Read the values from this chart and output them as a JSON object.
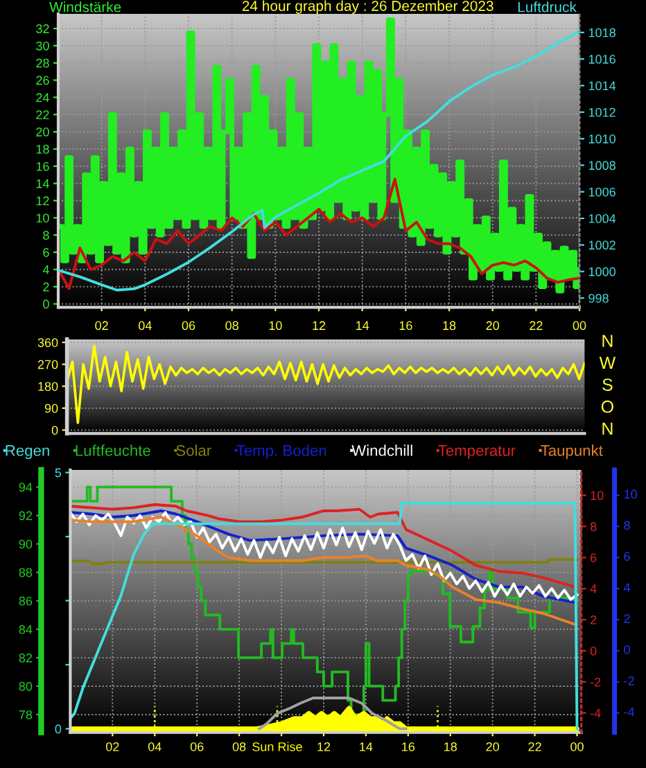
{
  "chart_data": [
    {
      "type": "line",
      "title": "24 hour graph day : 26 Dezember 2023",
      "ylabel": "Windstärke",
      "y2label": "Luftdruck",
      "xlim": [
        "2023-12-26T00:00",
        "2023-12-27T00:00"
      ],
      "xticks": [
        {
          "value": "2023-12-26T02:00",
          "label": "02"
        },
        {
          "value": "2023-12-26T04:00",
          "label": "04"
        },
        {
          "value": "2023-12-26T06:00",
          "label": "06"
        },
        {
          "value": "2023-12-26T08:00",
          "label": "08"
        },
        {
          "value": "2023-12-26T10:00",
          "label": "10"
        },
        {
          "value": "2023-12-26T12:00",
          "label": "12"
        },
        {
          "value": "2023-12-26T14:00",
          "label": "14"
        },
        {
          "value": "2023-12-26T16:00",
          "label": "16"
        },
        {
          "value": "2023-12-26T18:00",
          "label": "18"
        },
        {
          "value": "2023-12-26T20:00",
          "label": "20"
        },
        {
          "value": "2023-12-26T22:00",
          "label": "22"
        },
        {
          "value": "2023-12-27T00:00",
          "label": "00"
        }
      ],
      "ylim": [
        -0.4,
        33.7
      ],
      "yticks": [
        0,
        2,
        4,
        6,
        8,
        10,
        12,
        14,
        16,
        18,
        20,
        22,
        24,
        26,
        28,
        30,
        32
      ],
      "y2lim": [
        997.3,
        1019.4
      ],
      "y2ticks": [
        998,
        1000,
        1002,
        1004,
        1006,
        1008,
        1010,
        1012,
        1014,
        1016,
        1018
      ],
      "grid": true,
      "series": [
        {
          "type": "step",
          "color": "#22ee22",
          "x": [
            "2023-12-26T00:00",
            "2023-12-26T00:12",
            "2023-12-26T00:24",
            "2023-12-26T00:36",
            "2023-12-26T00:48",
            "2023-12-26T01:00",
            "2023-12-26T01:12",
            "2023-12-26T01:24",
            "2023-12-26T01:36",
            "2023-12-26T01:48",
            "2023-12-26T02:00",
            "2023-12-26T02:12",
            "2023-12-26T02:24",
            "2023-12-26T02:36",
            "2023-12-26T02:48",
            "2023-12-26T03:00",
            "2023-12-26T03:12",
            "2023-12-26T03:24",
            "2023-12-26T03:36",
            "2023-12-26T03:48",
            "2023-12-26T04:00",
            "2023-12-26T04:12",
            "2023-12-26T04:24",
            "2023-12-26T04:36",
            "2023-12-26T04:48",
            "2023-12-26T05:00",
            "2023-12-26T05:12",
            "2023-12-26T05:24",
            "2023-12-26T05:36",
            "2023-12-26T05:48",
            "2023-12-26T06:00",
            "2023-12-26T06:12",
            "2023-12-26T06:24",
            "2023-12-26T06:36",
            "2023-12-26T06:48",
            "2023-12-26T07:00",
            "2023-12-26T07:12",
            "2023-12-26T07:24",
            "2023-12-26T07:36",
            "2023-12-26T07:48",
            "2023-12-26T08:00",
            "2023-12-26T08:12",
            "2023-12-26T08:24",
            "2023-12-26T08:36",
            "2023-12-26T08:48",
            "2023-12-26T09:00",
            "2023-12-26T09:12",
            "2023-12-26T09:24",
            "2023-12-26T09:36",
            "2023-12-26T09:48",
            "2023-12-26T10:00",
            "2023-12-26T10:12",
            "2023-12-26T10:24",
            "2023-12-26T10:36",
            "2023-12-26T10:48",
            "2023-12-26T11:00",
            "2023-12-26T11:12",
            "2023-12-26T11:24",
            "2023-12-26T11:36",
            "2023-12-26T11:48",
            "2023-12-26T12:00",
            "2023-12-26T12:12",
            "2023-12-26T12:24",
            "2023-12-26T12:36",
            "2023-12-26T12:48",
            "2023-12-26T13:00",
            "2023-12-26T13:12",
            "2023-12-26T13:24",
            "2023-12-26T13:36",
            "2023-12-26T13:48",
            "2023-12-26T14:00",
            "2023-12-26T14:12",
            "2023-12-26T14:24",
            "2023-12-26T14:36",
            "2023-12-26T14:48",
            "2023-12-26T15:00",
            "2023-12-26T15:12",
            "2023-12-26T15:24",
            "2023-12-26T15:36",
            "2023-12-26T15:48",
            "2023-12-26T16:00",
            "2023-12-26T16:12",
            "2023-12-26T16:24",
            "2023-12-26T16:36",
            "2023-12-26T16:48",
            "2023-12-26T17:00",
            "2023-12-26T17:12",
            "2023-12-26T17:24",
            "2023-12-26T17:36",
            "2023-12-26T17:48",
            "2023-12-26T18:00",
            "2023-12-26T18:12",
            "2023-12-26T18:24",
            "2023-12-26T18:36",
            "2023-12-26T18:48",
            "2023-12-26T19:00",
            "2023-12-26T19:12",
            "2023-12-26T19:24",
            "2023-12-26T19:36",
            "2023-12-26T19:48",
            "2023-12-26T20:00",
            "2023-12-26T20:12",
            "2023-12-26T20:24",
            "2023-12-26T20:36",
            "2023-12-26T20:48",
            "2023-12-26T21:00",
            "2023-12-26T21:12",
            "2023-12-26T21:24",
            "2023-12-26T21:36",
            "2023-12-26T21:48",
            "2023-12-26T22:00",
            "2023-12-26T22:12",
            "2023-12-26T22:24",
            "2023-12-26T22:36",
            "2023-12-26T22:48",
            "2023-12-26T23:00",
            "2023-12-26T23:12",
            "2023-12-26T23:24",
            "2023-12-26T23:36",
            "2023-12-26T23:48",
            "2023-12-27T00:00"
          ],
          "values": [
            9,
            5,
            17,
            6,
            9,
            5,
            15,
            6,
            17,
            5,
            14,
            7,
            22,
            6,
            15,
            5,
            18,
            8,
            14,
            6,
            20,
            9,
            18,
            8,
            22,
            9,
            18,
            10,
            20,
            9,
            31.5,
            10,
            22,
            9,
            18,
            10,
            27.5,
            9,
            20,
            26,
            10,
            18,
            9,
            22,
            5.5,
            27.5,
            10,
            24,
            9,
            20,
            10,
            18,
            9,
            26,
            10,
            22,
            9,
            18,
            10,
            30,
            11,
            28,
            10,
            30,
            12,
            26,
            10,
            28,
            11,
            24,
            10,
            28,
            12,
            27,
            10,
            22,
            33,
            12,
            26,
            9,
            20,
            8,
            18,
            7,
            20,
            9,
            16,
            8,
            15,
            6,
            14,
            8,
            16.5,
            6,
            12,
            3,
            9,
            4,
            10,
            3,
            8,
            4,
            16.5,
            3,
            11,
            4,
            9,
            3,
            12.5,
            4,
            8,
            2,
            7,
            3,
            6,
            1.5,
            6.5,
            3,
            6,
            2,
            4
          ]
        },
        {
          "color": "#cc1111",
          "x": [
            "2023-12-26T00:00",
            "2023-12-26T00:30",
            "2023-12-26T01:00",
            "2023-12-26T01:30",
            "2023-12-26T02:00",
            "2023-12-26T02:30",
            "2023-12-26T03:00",
            "2023-12-26T03:30",
            "2023-12-26T04:00",
            "2023-12-26T04:30",
            "2023-12-26T05:00",
            "2023-12-26T05:30",
            "2023-12-26T06:00",
            "2023-12-26T06:30",
            "2023-12-26T07:00",
            "2023-12-26T07:30",
            "2023-12-26T08:00",
            "2023-12-26T08:30",
            "2023-12-26T09:00",
            "2023-12-26T09:30",
            "2023-12-26T10:00",
            "2023-12-26T10:30",
            "2023-12-26T11:00",
            "2023-12-26T11:30",
            "2023-12-26T12:00",
            "2023-12-26T12:30",
            "2023-12-26T13:00",
            "2023-12-26T13:30",
            "2023-12-26T14:00",
            "2023-12-26T14:30",
            "2023-12-26T15:00",
            "2023-12-26T15:30",
            "2023-12-26T16:00",
            "2023-12-26T16:30",
            "2023-12-26T17:00",
            "2023-12-26T17:30",
            "2023-12-26T18:00",
            "2023-12-26T18:30",
            "2023-12-26T19:00",
            "2023-12-26T19:30",
            "2023-12-26T20:00",
            "2023-12-26T20:30",
            "2023-12-26T21:00",
            "2023-12-26T21:30",
            "2023-12-26T22:00",
            "2023-12-26T22:30",
            "2023-12-26T23:00",
            "2023-12-26T23:30",
            "2023-12-27T00:00"
          ],
          "values": [
            4.0,
            1.8,
            6.5,
            4.0,
            4.5,
            5.5,
            5.0,
            6.0,
            5.0,
            7.5,
            7.0,
            8.5,
            7.0,
            8.0,
            9.0,
            8.5,
            10.0,
            9.0,
            10.5,
            8.5,
            9.5,
            8.0,
            9.0,
            10.0,
            11.0,
            9.5,
            10.5,
            9.5,
            10.0,
            9.0,
            10.0,
            14.5,
            8.5,
            9.5,
            7.5,
            7.0,
            7.0,
            6.5,
            5.5,
            3.5,
            4.5,
            4.8,
            4.5,
            5.0,
            4.2,
            3.0,
            2.5,
            2.8,
            3.0
          ]
        },
        {
          "axis": "y2",
          "color": "#44dddd",
          "x": [
            "2023-12-26T00:00",
            "2023-12-26T01:00",
            "2023-12-26T02:00",
            "2023-12-26T02:42",
            "2023-12-26T03:30",
            "2023-12-26T04:00",
            "2023-12-26T05:00",
            "2023-12-26T06:00",
            "2023-12-26T07:00",
            "2023-12-26T08:00",
            "2023-12-26T09:00",
            "2023-12-26T09:24",
            "2023-12-26T09:30",
            "2023-12-26T10:00",
            "2023-12-26T11:00",
            "2023-12-26T12:00",
            "2023-12-26T13:00",
            "2023-12-26T14:00",
            "2023-12-26T15:00",
            "2023-12-26T16:00",
            "2023-12-26T17:00",
            "2023-12-26T18:00",
            "2023-12-26T19:00",
            "2023-12-26T20:00",
            "2023-12-26T21:00",
            "2023-12-26T22:00",
            "2023-12-26T23:00",
            "2023-12-27T00:00"
          ],
          "values": [
            1000.1,
            999.6,
            999.0,
            998.6,
            998.7,
            999.0,
            999.8,
            1000.7,
            1001.8,
            1003.0,
            1004.3,
            1004.6,
            1003.3,
            1004.1,
            1005.0,
            1005.9,
            1006.9,
            1007.6,
            1008.3,
            1010.2,
            1011.3,
            1012.8,
            1013.9,
            1014.8,
            1015.4,
            1016.2,
            1017.2,
            1018.1
          ]
        }
      ]
    },
    {
      "type": "line",
      "categories": [
        null,
        null,
        null,
        null,
        null,
        null,
        null,
        null,
        null,
        null,
        null,
        null,
        null,
        null,
        null,
        null,
        null,
        null,
        null,
        null,
        null,
        null,
        null,
        null,
        null,
        null,
        null,
        null,
        null,
        null,
        null,
        null,
        null,
        null,
        null,
        null,
        null,
        null,
        null,
        null,
        null,
        null,
        null,
        null,
        null,
        null,
        null,
        null,
        null,
        null,
        null,
        null,
        null,
        null,
        null,
        null,
        null,
        null,
        null,
        null,
        null,
        null,
        null,
        null,
        null,
        null,
        null,
        null,
        null,
        null,
        null,
        null,
        null,
        null,
        null,
        null,
        null,
        null,
        null,
        null,
        null,
        null,
        null,
        null,
        null,
        null,
        null,
        null,
        null,
        null,
        null,
        null,
        null,
        null,
        null,
        null
      ],
      "ylim": [
        -14,
        373
      ],
      "yticks": [
        0,
        90,
        180,
        270,
        360
      ],
      "annotations": [
        "N",
        "W",
        "S",
        "O",
        "N"
      ],
      "grid": "y",
      "series": [
        {
          "color": "#ffff00",
          "values": [
            200,
            280,
            30,
            270,
            170,
            345,
            200,
            300,
            180,
            280,
            160,
            320,
            200,
            290,
            170,
            300,
            210,
            270,
            190,
            260,
            225,
            255,
            235,
            250,
            230,
            255,
            235,
            250,
            225,
            250,
            235,
            255,
            230,
            250,
            235,
            255,
            225,
            260,
            230,
            280,
            210,
            275,
            205,
            280,
            200,
            270,
            190,
            270,
            200,
            265,
            215,
            255,
            225,
            250,
            230,
            255,
            235,
            250,
            240,
            265,
            230,
            255,
            235,
            260,
            235,
            255,
            240,
            255,
            235,
            250,
            235,
            255,
            230,
            250,
            225,
            255,
            230,
            255,
            225,
            260,
            230,
            265,
            225,
            255,
            230,
            260,
            220,
            250,
            225,
            250,
            215,
            255,
            230,
            270,
            210,
            275
          ]
        }
      ]
    },
    {
      "type": "line",
      "xlim": [
        "2023-12-26T00:00",
        "2023-12-27T00:12"
      ],
      "xticks": [
        {
          "value": "2023-12-26T02:00",
          "label": "02"
        },
        {
          "value": "2023-12-26T04:00",
          "label": "04"
        },
        {
          "value": "2023-12-26T06:00",
          "label": "06"
        },
        {
          "value": "2023-12-26T08:00",
          "label": "08"
        },
        {
          "value": "2023-12-26T10:00",
          "label": null
        },
        {
          "value": "2023-12-26T12:00",
          "label": "12"
        },
        {
          "value": "2023-12-26T14:00",
          "label": "14"
        },
        {
          "value": "2023-12-26T16:00",
          "label": "16"
        },
        {
          "value": "2023-12-26T18:00",
          "label": "18"
        },
        {
          "value": "2023-12-26T20:00",
          "label": "20"
        },
        {
          "value": "2023-12-26T22:00",
          "label": "22"
        },
        {
          "value": "2023-12-27T00:00",
          "label": "00"
        }
      ],
      "ylim": [
        76.75,
        95.2
      ],
      "yticks": [
        78,
        80,
        82,
        84,
        86,
        88,
        90,
        92,
        94
      ],
      "y2lim": [
        -5.25,
        11.63
      ],
      "y2ticks": [
        -4,
        -2,
        0,
        2,
        4,
        6,
        8,
        10
      ],
      "y3lim": [
        -0.07,
        5.05
      ],
      "y3ticks": [
        0,
        {
          "value": 1.25,
          "label": null
        },
        {
          "value": 2.5,
          "label": null
        },
        {
          "value": 3.75,
          "label": null
        },
        5
      ],
      "annotations": [
        "10",
        "8",
        "6",
        "4",
        "2",
        "0",
        "-2",
        "-4"
      ],
      "grid": true,
      "legend": "top",
      "ref_lines": [
        {
          "axis": "x",
          "value": "2023-12-26T04:00",
          "color": "#ffff00",
          "line_style": "dotted"
        },
        {
          "axis": "x",
          "value": "2023-12-26T09:48",
          "label": "Sun Rise",
          "color": "#ffff00",
          "line_style": "dotted"
        },
        {
          "axis": "x",
          "value": "2023-12-26T17:24",
          "color": "#ffff00",
          "line_style": "dotted"
        }
      ],
      "series": [
        {
          "name": "Regen",
          "axis": "y3",
          "color": "#44dddd",
          "x": [
            "2023-12-26T00:00",
            "2023-12-26T00:12",
            "2023-12-26T00:36",
            "2023-12-26T01:00",
            "2023-12-26T01:24",
            "2023-12-26T01:54",
            "2023-12-26T02:24",
            "2023-12-26T02:42",
            "2023-12-26T03:00",
            "2023-12-26T03:30",
            "2023-12-26T03:54",
            "2023-12-26T15:36",
            "2023-12-26T15:42",
            "2023-12-26T23:54",
            "2023-12-27T00:00"
          ],
          "values": [
            0.2,
            0.3,
            0.8,
            1.2,
            1.6,
            2.1,
            2.6,
            3.0,
            3.4,
            3.8,
            4.0,
            4.0,
            4.4,
            4.4,
            0
          ]
        },
        {
          "name": "Luftfeuchte",
          "type": "step",
          "color": "#22bb22",
          "x": [
            "2023-12-26T00:00",
            "2023-12-26T00:48",
            "2023-12-26T00:57",
            "2023-12-26T01:17",
            "2023-12-26T04:47",
            "2023-12-26T05:18",
            "2023-12-26T05:27",
            "2023-12-26T05:36",
            "2023-12-26T05:45",
            "2023-12-26T05:54",
            "2023-12-26T06:03",
            "2023-12-26T06:12",
            "2023-12-26T06:24",
            "2023-12-26T07:05",
            "2023-12-26T07:58",
            "2023-12-26T09:03",
            "2023-12-26T09:29",
            "2023-12-26T09:36",
            "2023-12-26T10:02",
            "2023-12-26T10:28",
            "2023-12-26T10:35",
            "2023-12-26T11:01",
            "2023-12-26T11:42",
            "2023-12-26T12:00",
            "2023-12-26T12:24",
            "2023-12-26T13:09",
            "2023-12-26T13:18",
            "2023-12-26T13:54",
            "2023-12-26T14:00",
            "2023-12-26T14:09",
            "2023-12-26T14:48",
            "2023-12-26T15:24",
            "2023-12-26T15:33",
            "2023-12-26T15:42",
            "2023-12-26T15:51",
            "2023-12-26T16:00",
            "2023-12-26T16:07",
            "2023-12-26T17:12",
            "2023-12-26T17:39",
            "2023-12-26T17:59",
            "2023-12-26T18:30",
            "2023-12-26T19:04",
            "2023-12-26T19:24",
            "2023-12-26T19:37",
            "2023-12-26T19:50",
            "2023-12-26T20:00",
            "2023-12-26T20:42",
            "2023-12-26T21:12",
            "2023-12-26T21:48",
            "2023-12-26T22:00",
            "2023-12-26T22:42",
            "2023-12-27T00:00"
          ],
          "values": [
            93,
            94,
            93,
            94,
            93,
            92,
            91,
            90,
            89,
            88,
            87,
            86,
            85,
            84,
            82,
            83,
            84,
            82,
            83,
            84,
            83,
            82,
            81,
            80,
            81,
            79,
            78,
            80,
            83,
            80,
            79,
            80,
            82,
            84,
            86,
            87.8,
            88.1,
            87.8,
            86.5,
            84.2,
            83.1,
            84.2,
            85.5,
            86.8,
            88.1,
            86.8,
            86.2,
            85.2,
            84.1,
            85.2,
            86.2,
            86.2
          ]
        },
        {
          "name": "Solar",
          "color": "#808010",
          "x": [
            "2023-12-26T00:00",
            "2023-12-26T00:54",
            "2023-12-26T01:00",
            "2023-12-26T01:36",
            "2023-12-26T01:42",
            "2023-12-26T22:36",
            "2023-12-26T22:42",
            "2023-12-27T00:00"
          ],
          "values": [
            88.8,
            88.8,
            88.6,
            88.6,
            88.7,
            88.7,
            88.9,
            88.9
          ]
        },
        {
          "name": "Temp. Boden",
          "axis": "y2",
          "color": "#1122cc",
          "x": [
            "2023-12-26T00:00",
            "2023-12-26T01:00",
            "2023-12-26T02:00",
            "2023-12-26T03:00",
            "2023-12-26T04:18",
            "2023-12-26T05:00",
            "2023-12-26T06:00",
            "2023-12-26T07:30",
            "2023-12-26T08:30",
            "2023-12-26T10:00",
            "2023-12-26T12:00",
            "2023-12-26T13:42",
            "2023-12-26T15:30",
            "2023-12-26T15:54",
            "2023-12-26T17:00",
            "2023-12-26T18:06",
            "2023-12-26T19:12",
            "2023-12-26T20:18",
            "2023-12-26T21:24",
            "2023-12-26T22:24",
            "2023-12-26T23:54"
          ],
          "values": [
            8.9,
            8.8,
            8.6,
            8.7,
            9.0,
            8.8,
            8.3,
            7.5,
            7.1,
            7.2,
            7.4,
            7.5,
            7.4,
            6.6,
            6.1,
            5.5,
            4.6,
            4.1,
            4.1,
            3.5,
            3.1
          ]
        },
        {
          "name": "Windchill",
          "axis": "y2",
          "color": "#ffffff",
          "x": [
            "2023-12-26T00:00",
            "2023-12-26T00:18",
            "2023-12-26T00:36",
            "2023-12-26T00:54",
            "2023-12-26T01:12",
            "2023-12-26T01:30",
            "2023-12-26T01:48",
            "2023-12-26T02:06",
            "2023-12-26T02:24",
            "2023-12-26T02:42",
            "2023-12-26T03:00",
            "2023-12-26T03:18",
            "2023-12-26T03:36",
            "2023-12-26T03:54",
            "2023-12-26T04:12",
            "2023-12-26T04:30",
            "2023-12-26T04:48",
            "2023-12-26T05:06",
            "2023-12-26T05:24",
            "2023-12-26T05:42",
            "2023-12-26T06:00",
            "2023-12-26T06:18",
            "2023-12-26T06:36",
            "2023-12-26T06:54",
            "2023-12-26T07:12",
            "2023-12-26T07:30",
            "2023-12-26T07:48",
            "2023-12-26T08:06",
            "2023-12-26T08:24",
            "2023-12-26T08:42",
            "2023-12-26T09:00",
            "2023-12-26T09:18",
            "2023-12-26T09:36",
            "2023-12-26T09:54",
            "2023-12-26T10:12",
            "2023-12-26T10:30",
            "2023-12-26T10:48",
            "2023-12-26T11:06",
            "2023-12-26T11:24",
            "2023-12-26T11:42",
            "2023-12-26T12:00",
            "2023-12-26T12:18",
            "2023-12-26T12:36",
            "2023-12-26T12:54",
            "2023-12-26T13:12",
            "2023-12-26T13:30",
            "2023-12-26T13:48",
            "2023-12-26T14:06",
            "2023-12-26T14:24",
            "2023-12-26T14:42",
            "2023-12-26T15:00",
            "2023-12-26T15:18",
            "2023-12-26T15:36",
            "2023-12-26T15:54",
            "2023-12-26T16:12",
            "2023-12-26T16:30",
            "2023-12-26T16:48",
            "2023-12-26T17:06",
            "2023-12-26T17:24",
            "2023-12-26T17:42",
            "2023-12-26T18:00",
            "2023-12-26T18:18",
            "2023-12-26T18:36",
            "2023-12-26T18:54",
            "2023-12-26T19:12",
            "2023-12-26T19:30",
            "2023-12-26T19:48",
            "2023-12-26T20:06",
            "2023-12-26T20:24",
            "2023-12-26T20:42",
            "2023-12-26T21:00",
            "2023-12-26T21:18",
            "2023-12-26T21:36",
            "2023-12-26T21:54",
            "2023-12-26T22:12",
            "2023-12-26T22:30",
            "2023-12-26T22:48",
            "2023-12-26T23:06",
            "2023-12-26T23:24",
            "2023-12-26T23:42",
            "2023-12-27T00:00"
          ],
          "values": [
            8.9,
            8.3,
            8.8,
            8.1,
            8.7,
            8.4,
            8.8,
            8.2,
            7.4,
            8.6,
            8.2,
            8.7,
            7.9,
            8.6,
            8.3,
            8.9,
            8.2,
            8.6,
            8.1,
            8.3,
            7.3,
            7.9,
            7.0,
            7.5,
            6.6,
            7.3,
            6.4,
            7.2,
            6.2,
            7.1,
            6.0,
            7.0,
            6.3,
            7.3,
            6.1,
            7.2,
            6.4,
            7.4,
            6.5,
            7.6,
            6.6,
            7.8,
            6.8,
            7.9,
            6.7,
            7.6,
            6.5,
            7.7,
            6.9,
            7.8,
            6.6,
            7.5,
            6.8,
            5.8,
            6.2,
            5.3,
            6.1,
            4.9,
            5.6,
            4.5,
            5.0,
            4.3,
            4.8,
            4.0,
            4.5,
            3.8,
            4.4,
            3.5,
            4.2,
            3.6,
            4.3,
            3.5,
            4.1,
            3.7,
            4.2,
            3.5,
            4.0,
            3.4,
            3.9,
            3.3,
            3.6
          ]
        },
        {
          "name": "Temperatur",
          "axis": "y2",
          "color": "#dd2222",
          "x": [
            "2023-12-26T00:00",
            "2023-12-26T01:00",
            "2023-12-26T02:00",
            "2023-12-26T03:00",
            "2023-12-26T04:00",
            "2023-12-26T05:00",
            "2023-12-26T05:30",
            "2023-12-26T06:30",
            "2023-12-26T07:00",
            "2023-12-26T08:00",
            "2023-12-26T09:00",
            "2023-12-26T10:00",
            "2023-12-26T11:00",
            "2023-12-26T12:00",
            "2023-12-26T12:36",
            "2023-12-26T13:42",
            "2023-12-26T14:12",
            "2023-12-26T14:36",
            "2023-12-26T15:30",
            "2023-12-26T15:54",
            "2023-12-26T17:00",
            "2023-12-26T18:06",
            "2023-12-26T19:12",
            "2023-12-26T20:18",
            "2023-12-26T21:24",
            "2023-12-26T22:24",
            "2023-12-26T23:54"
          ],
          "values": [
            9.3,
            9.2,
            9.1,
            9.2,
            9.4,
            9.3,
            9.0,
            8.7,
            8.5,
            8.3,
            8.3,
            8.4,
            8.6,
            9.0,
            9.0,
            9.1,
            8.6,
            8.8,
            8.9,
            7.8,
            7.1,
            6.4,
            5.5,
            5.1,
            5.0,
            4.7,
            4.1
          ]
        },
        {
          "name": "Taupunkt",
          "axis": "y2",
          "color": "#e8822a",
          "x": [
            "2023-12-26T00:00",
            "2023-12-26T01:00",
            "2023-12-26T02:00",
            "2023-12-26T03:00",
            "2023-12-26T04:18",
            "2023-12-26T05:30",
            "2023-12-26T06:00",
            "2023-12-26T06:30",
            "2023-12-26T07:00",
            "2023-12-26T07:30",
            "2023-12-26T08:30",
            "2023-12-26T10:00",
            "2023-12-26T11:00",
            "2023-12-26T12:00",
            "2023-12-26T13:00",
            "2023-12-26T14:00",
            "2023-12-26T14:30",
            "2023-12-26T15:30",
            "2023-12-26T15:54",
            "2023-12-26T17:00",
            "2023-12-26T17:30",
            "2023-12-26T18:06",
            "2023-12-26T19:12",
            "2023-12-26T20:18",
            "2023-12-26T21:24",
            "2023-12-26T22:24",
            "2023-12-26T23:54"
          ],
          "values": [
            8.4,
            8.3,
            8.3,
            8.3,
            8.6,
            7.8,
            7.4,
            6.9,
            6.4,
            6.0,
            5.8,
            5.8,
            5.8,
            6.0,
            6.0,
            6.1,
            5.8,
            5.8,
            5.5,
            5.2,
            4.8,
            4.1,
            3.3,
            3.1,
            2.7,
            2.4,
            1.7
          ]
        },
        {
          "axis": "y3",
          "color": "#a0a0a0",
          "x": [
            "2023-12-26T08:57",
            "2023-12-26T09:18",
            "2023-12-26T09:48",
            "2023-12-26T10:24",
            "2023-12-26T10:54",
            "2023-12-26T11:30",
            "2023-12-26T12:00",
            "2023-12-26T12:36",
            "2023-12-26T13:12",
            "2023-12-26T13:48",
            "2023-12-26T14:18",
            "2023-12-26T14:48",
            "2023-12-26T15:12",
            "2023-12-26T15:36",
            "2023-12-26T15:54"
          ],
          "values": [
            0,
            0.1,
            0.3,
            0.4,
            0.5,
            0.6,
            0.6,
            0.6,
            0.6,
            0.5,
            0.3,
            0.2,
            0.1,
            0.0,
            0
          ]
        },
        {
          "type": "area",
          "axis": "y3",
          "color": "#ffff00",
          "x": [
            "2023-12-26T00:00",
            "2023-12-26T08:51",
            "2023-12-26T10:00",
            "2023-12-26T10:36",
            "2023-12-26T11:00",
            "2023-12-26T11:18",
            "2023-12-26T11:36",
            "2023-12-26T11:54",
            "2023-12-26T12:12",
            "2023-12-26T12:30",
            "2023-12-26T12:48",
            "2023-12-26T13:12",
            "2023-12-26T13:30",
            "2023-12-26T13:54",
            "2023-12-26T14:12",
            "2023-12-26T14:30",
            "2023-12-26T14:48",
            "2023-12-26T15:00",
            "2023-12-26T15:18",
            "2023-12-26T15:36",
            "2023-12-26T15:54",
            "2023-12-27T00:00"
          ],
          "values": [
            0,
            0,
            0.1,
            0.2,
            0.2,
            0.3,
            0.2,
            0.3,
            0.2,
            0.3,
            0.2,
            0.4,
            0.2,
            0.3,
            0.2,
            0.2,
            0.1,
            0.2,
            0.1,
            0.1,
            0,
            0
          ]
        }
      ]
    }
  ]
}
